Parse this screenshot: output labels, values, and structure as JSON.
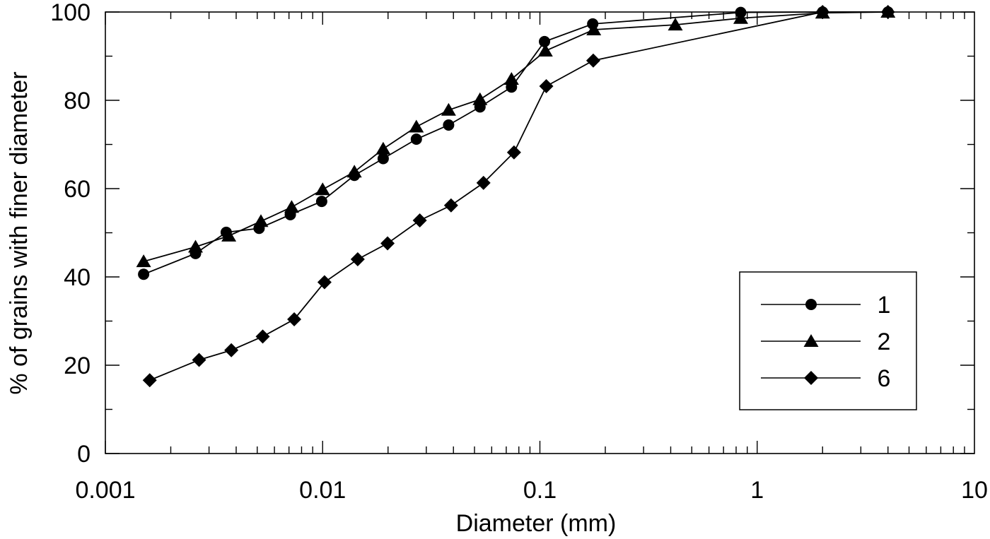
{
  "chart_data": {
    "type": "line",
    "title": "",
    "xlabel": "Diameter (mm)",
    "ylabel": "% of grains with finer diameter",
    "xscale": "log",
    "xlim": [
      0.001,
      10
    ],
    "ylim": [
      0,
      100
    ],
    "x_ticks": [
      "0.001",
      "0.01",
      "0.1",
      "1",
      "10"
    ],
    "y_ticks": [
      "0",
      "20",
      "40",
      "60",
      "80",
      "100"
    ],
    "grid": false,
    "legend_position": "lower right",
    "series": [
      {
        "name": "1",
        "marker": "circle",
        "x": [
          0.0015,
          0.0026,
          0.0036,
          0.0051,
          0.0071,
          0.0099,
          0.014,
          0.019,
          0.027,
          0.038,
          0.053,
          0.074,
          0.105,
          0.175,
          0.84,
          2.0,
          4.0
        ],
        "values": [
          40.6,
          45.3,
          50.1,
          51.0,
          54.1,
          57.1,
          63.0,
          66.8,
          71.2,
          74.4,
          78.5,
          83.0,
          93.3,
          97.3,
          99.9,
          100,
          100
        ]
      },
      {
        "name": "2",
        "marker": "triangle",
        "x": [
          0.0015,
          0.0026,
          0.0037,
          0.0052,
          0.0072,
          0.01,
          0.014,
          0.019,
          0.027,
          0.038,
          0.053,
          0.074,
          0.106,
          0.177,
          0.42,
          0.84,
          2.0,
          4.0
        ],
        "values": [
          43.5,
          46.8,
          49.3,
          52.6,
          55.8,
          59.8,
          63.8,
          69.0,
          74.0,
          77.8,
          80.2,
          84.8,
          91.2,
          96.0,
          97.1,
          98.6,
          99.8,
          100
        ]
      },
      {
        "name": "6",
        "marker": "diamond",
        "x": [
          0.0016,
          0.0027,
          0.0038,
          0.0053,
          0.0074,
          0.0102,
          0.0145,
          0.0199,
          0.028,
          0.039,
          0.055,
          0.076,
          0.107,
          0.176,
          2.0,
          4.0
        ],
        "values": [
          16.6,
          21.2,
          23.4,
          26.5,
          30.4,
          38.8,
          44.0,
          47.6,
          52.8,
          56.2,
          61.3,
          68.2,
          83.2,
          89.0,
          100,
          100
        ]
      }
    ]
  },
  "legend": {
    "items": [
      {
        "label": "1",
        "marker": "circle"
      },
      {
        "label": "2",
        "marker": "triangle"
      },
      {
        "label": "6",
        "marker": "diamond"
      }
    ]
  },
  "axes": {
    "xlabel": "Diameter (mm)",
    "ylabel": "% of grains with finer diameter",
    "x_tick_labels": [
      "0.001",
      "0.01",
      "0.1",
      "1",
      "10"
    ],
    "y_tick_labels": [
      "0",
      "20",
      "40",
      "60",
      "80",
      "100"
    ]
  },
  "colors": {
    "line": "#000000",
    "marker": "#000000",
    "background": "#ffffff"
  }
}
